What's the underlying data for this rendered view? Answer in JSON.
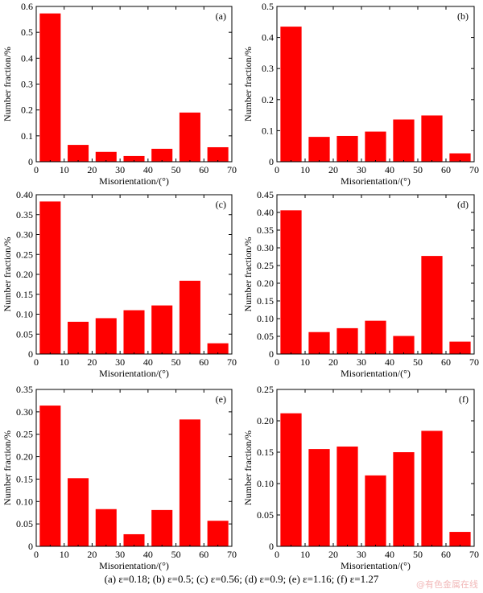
{
  "chart_data": [
    {
      "type": "bar",
      "panel_label": "(a)",
      "xlabel": "Misorientation/(°)",
      "ylabel": "Number fraction/%",
      "x_ticks": [
        "0",
        "10",
        "20",
        "30",
        "40",
        "50",
        "60",
        "70"
      ],
      "y_ticks": [
        "0",
        "0.1",
        "0.2",
        "0.3",
        "0.4",
        "0.5",
        "0.6"
      ],
      "xlim": [
        0,
        70
      ],
      "ylim": [
        0,
        0.6
      ],
      "bin_centers": [
        5,
        15,
        25,
        35,
        45,
        55,
        65
      ],
      "values": [
        0.573,
        0.065,
        0.038,
        0.022,
        0.05,
        0.19,
        0.056
      ]
    },
    {
      "type": "bar",
      "panel_label": "(b)",
      "xlabel": "Misorientation/(°)",
      "ylabel": "Number fraction/%",
      "x_ticks": [
        "0",
        "10",
        "20",
        "30",
        "40",
        "50",
        "60",
        "70"
      ],
      "y_ticks": [
        "0",
        "0.1",
        "0.2",
        "0.3",
        "0.4",
        "0.5"
      ],
      "xlim": [
        0,
        70
      ],
      "ylim": [
        0,
        0.5
      ],
      "bin_centers": [
        5,
        15,
        25,
        35,
        45,
        55,
        65
      ],
      "values": [
        0.435,
        0.08,
        0.083,
        0.097,
        0.136,
        0.149,
        0.027
      ]
    },
    {
      "type": "bar",
      "panel_label": "(c)",
      "xlabel": "Misorientation/(°)",
      "ylabel": "Number fraction/%",
      "x_ticks": [
        "0",
        "10",
        "20",
        "30",
        "40",
        "50",
        "60",
        "70"
      ],
      "y_ticks": [
        "0",
        "0.05",
        "0.10",
        "0.15",
        "0.20",
        "0.25",
        "0.30",
        "0.35",
        "0.40"
      ],
      "xlim": [
        0,
        70
      ],
      "ylim": [
        0,
        0.4
      ],
      "bin_centers": [
        5,
        15,
        25,
        35,
        45,
        55,
        65
      ],
      "values": [
        0.383,
        0.081,
        0.09,
        0.11,
        0.122,
        0.184,
        0.027
      ]
    },
    {
      "type": "bar",
      "panel_label": "(d)",
      "xlabel": "Misorientation/(°)",
      "ylabel": "Number fraction/%",
      "x_ticks": [
        "0",
        "10",
        "20",
        "30",
        "40",
        "50",
        "60",
        "70"
      ],
      "y_ticks": [
        "0",
        "0.05",
        "0.10",
        "0.15",
        "0.20",
        "0.25",
        "0.30",
        "0.35",
        "0.40",
        "0.45"
      ],
      "xlim": [
        0,
        70
      ],
      "ylim": [
        0,
        0.45
      ],
      "bin_centers": [
        5,
        15,
        25,
        35,
        45,
        55,
        65
      ],
      "values": [
        0.406,
        0.062,
        0.073,
        0.094,
        0.051,
        0.277,
        0.035
      ]
    },
    {
      "type": "bar",
      "panel_label": "(e)",
      "xlabel": "Misorientation/(°)",
      "ylabel": "Number fraction/%",
      "x_ticks": [
        "0",
        "10",
        "20",
        "30",
        "40",
        "50",
        "60",
        "70"
      ],
      "y_ticks": [
        "0",
        "0.05",
        "0.10",
        "0.15",
        "0.20",
        "0.25",
        "0.30",
        "0.35"
      ],
      "xlim": [
        0,
        70
      ],
      "ylim": [
        0,
        0.35
      ],
      "bin_centers": [
        5,
        15,
        25,
        35,
        45,
        55,
        65
      ],
      "values": [
        0.314,
        0.152,
        0.083,
        0.027,
        0.081,
        0.283,
        0.057
      ]
    },
    {
      "type": "bar",
      "panel_label": "(f)",
      "xlabel": "Misorientation/(°)",
      "ylabel": "Number fraction/%",
      "x_ticks": [
        "0",
        "10",
        "20",
        "30",
        "40",
        "50",
        "60",
        "70"
      ],
      "y_ticks": [
        "0",
        "0.05",
        "0.10",
        "0.15",
        "0.20",
        "0.25"
      ],
      "xlim": [
        0,
        70
      ],
      "ylim": [
        0,
        0.25
      ],
      "bin_centers": [
        5,
        15,
        25,
        35,
        45,
        55,
        65
      ],
      "values": [
        0.212,
        0.155,
        0.159,
        0.113,
        0.15,
        0.184,
        0.023
      ]
    }
  ],
  "caption": "(a) ε=0.18; (b) ε=0.5; (c) ε=0.56; (d) ε=0.9; (e) ε=1.16; (f) ε=1.27",
  "watermark": "@有色金属在线",
  "bar_color": "#ff0000"
}
